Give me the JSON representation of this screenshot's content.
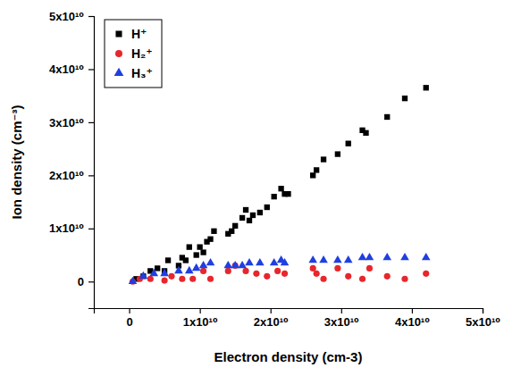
{
  "chart_data": {
    "type": "scatter",
    "x_label": "Electron density (cm-3)",
    "y_label": "Ion density (cm⁻³)",
    "xlim": [
      -5000000000.0,
      50000000000.0
    ],
    "ylim": [
      -5000000000.0,
      50000000000.0
    ],
    "xticks": [
      0,
      {
        "value": 10000000000.0,
        "label": "1x10¹⁰"
      },
      {
        "value": 20000000000.0,
        "label": "2x10¹⁰"
      },
      {
        "value": 30000000000.0,
        "label": "3x10¹⁰"
      },
      {
        "value": 40000000000.0,
        "label": "4x10¹⁰"
      },
      {
        "value": 50000000000.0,
        "label": "5x10¹⁰"
      }
    ],
    "yticks": [
      0,
      {
        "value": 10000000000.0,
        "label": "1x10¹⁰"
      },
      {
        "value": 20000000000.0,
        "label": "2x10¹⁰"
      },
      {
        "value": 30000000000.0,
        "label": "3x10¹⁰"
      },
      {
        "value": 40000000000.0,
        "label": "4x10¹⁰"
      },
      {
        "value": 50000000000.0,
        "label": "5x10¹⁰"
      }
    ],
    "grid": false,
    "legend": "upper left",
    "series": [
      {
        "name": "H⁺",
        "color": "#000000",
        "marker": "square",
        "x": [
          1000000000.0,
          2000000000.0,
          3000000000.0,
          4000000000.0,
          5000000000.0,
          5500000000.0,
          7000000000.0,
          7500000000.0,
          8000000000.0,
          8500000000.0,
          9500000000.0,
          10000000000.0,
          10500000000.0,
          11000000000.0,
          11500000000.0,
          12000000000.0,
          14000000000.0,
          14500000000.0,
          15000000000.0,
          16000000000.0,
          16500000000.0,
          17000000000.0,
          17500000000.0,
          18500000000.0,
          19500000000.0,
          20500000000.0,
          21500000000.0,
          22000000000.0,
          22500000000.0,
          26000000000.0,
          26500000000.0,
          27500000000.0,
          29500000000.0,
          31000000000.0,
          33000000000.0,
          33500000000.0,
          36500000000.0,
          39000000000.0,
          42000000000.0
        ],
        "values": [
          500000000.0,
          1000000000.0,
          2000000000.0,
          2500000000.0,
          2000000000.0,
          4000000000.0,
          3000000000.0,
          4500000000.0,
          4000000000.0,
          6500000000.0,
          5000000000.0,
          6500000000.0,
          5500000000.0,
          7500000000.0,
          8000000000.0,
          9500000000.0,
          9000000000.0,
          9500000000.0,
          10500000000.0,
          12000000000.0,
          13500000000.0,
          11500000000.0,
          12500000000.0,
          13000000000.0,
          14000000000.0,
          16000000000.0,
          17500000000.0,
          16500000000.0,
          16500000000.0,
          20000000000.0,
          21000000000.0,
          23000000000.0,
          24000000000.0,
          26000000000.0,
          28500000000.0,
          28000000000.0,
          31000000000.0,
          34500000000.0,
          36500000000.0
        ]
      },
      {
        "name": "H₂⁺",
        "color": "#e8262b",
        "marker": "circle",
        "x": [
          500000000.0,
          1500000000.0,
          3000000000.0,
          5000000000.0,
          6000000000.0,
          7500000000.0,
          9000000000.0,
          10500000000.0,
          11500000000.0,
          14000000000.0,
          15000000000.0,
          16500000000.0,
          18000000000.0,
          19500000000.0,
          21000000000.0,
          22000000000.0,
          26000000000.0,
          26500000000.0,
          27500000000.0,
          29500000000.0,
          31000000000.0,
          33000000000.0,
          34000000000.0,
          36500000000.0,
          39000000000.0,
          42000000000.0
        ],
        "values": [
          0,
          500000000.0,
          500000000.0,
          200000000.0,
          1000000000.0,
          500000000.0,
          500000000.0,
          2000000000.0,
          500000000.0,
          2000000000.0,
          3000000000.0,
          2000000000.0,
          1500000000.0,
          1000000000.0,
          2000000000.0,
          1500000000.0,
          2500000000.0,
          1500000000.0,
          500000000.0,
          2500000000.0,
          1000000000.0,
          500000000.0,
          2500000000.0,
          1000000000.0,
          500000000.0,
          1500000000.0
        ]
      },
      {
        "name": "H₃⁺",
        "color": "#1f3fe0",
        "marker": "triangle",
        "x": [
          500000000.0,
          2000000000.0,
          3500000000.0,
          5000000000.0,
          7000000000.0,
          8500000000.0,
          9500000000.0,
          10500000000.0,
          11500000000.0,
          14000000000.0,
          15000000000.0,
          16000000000.0,
          17000000000.0,
          18500000000.0,
          20500000000.0,
          21500000000.0,
          22000000000.0,
          26000000000.0,
          27500000000.0,
          29500000000.0,
          31000000000.0,
          33000000000.0,
          34000000000.0,
          36500000000.0,
          39000000000.0,
          42000000000.0
        ],
        "values": [
          0,
          1000000000.0,
          1500000000.0,
          1500000000.0,
          2000000000.0,
          2000000000.0,
          2500000000.0,
          3000000000.0,
          3500000000.0,
          3000000000.0,
          3000000000.0,
          3000000000.0,
          3500000000.0,
          3500000000.0,
          3500000000.0,
          4000000000.0,
          3500000000.0,
          4000000000.0,
          4000000000.0,
          4000000000.0,
          4000000000.0,
          4500000000.0,
          4500000000.0,
          4500000000.0,
          4500000000.0,
          4500000000.0
        ]
      }
    ]
  }
}
